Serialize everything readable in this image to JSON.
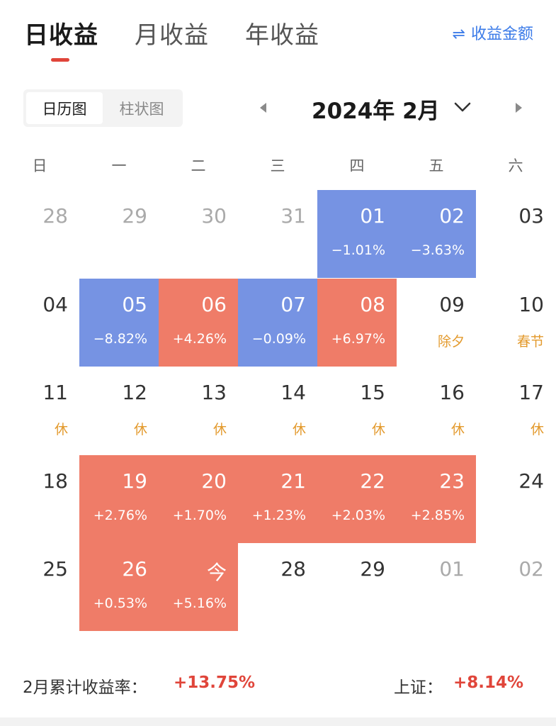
{
  "tabs": [
    {
      "label": "日收益",
      "active": true
    },
    {
      "label": "月收益",
      "active": false
    },
    {
      "label": "年收益",
      "active": false
    }
  ],
  "amount_toggle": {
    "icon": "swap-arrows-icon",
    "label": "收益金额"
  },
  "view_switch": [
    {
      "label": "日历图",
      "active": true
    },
    {
      "label": "柱状图",
      "active": false
    }
  ],
  "month_nav": {
    "title": "2024年 2月"
  },
  "weekdays": [
    "日",
    "一",
    "二",
    "三",
    "四",
    "五",
    "六"
  ],
  "days": [
    {
      "day": "28",
      "state": "muted"
    },
    {
      "day": "29",
      "state": "muted"
    },
    {
      "day": "30",
      "state": "muted"
    },
    {
      "day": "31",
      "state": "muted"
    },
    {
      "day": "01",
      "state": "neg",
      "sub": "−1.01%"
    },
    {
      "day": "02",
      "state": "neg",
      "sub": "−3.63%"
    },
    {
      "day": "03",
      "state": "normal"
    },
    {
      "day": "04",
      "state": "normal"
    },
    {
      "day": "05",
      "state": "neg",
      "sub": "−8.82%"
    },
    {
      "day": "06",
      "state": "pos",
      "sub": "+4.26%"
    },
    {
      "day": "07",
      "state": "neg",
      "sub": "−0.09%"
    },
    {
      "day": "08",
      "state": "pos",
      "sub": "+6.97%"
    },
    {
      "day": "09",
      "state": "holiday",
      "sub": "除夕"
    },
    {
      "day": "10",
      "state": "holiday",
      "sub": "春节"
    },
    {
      "day": "11",
      "state": "holiday",
      "sub": "休"
    },
    {
      "day": "12",
      "state": "holiday",
      "sub": "休"
    },
    {
      "day": "13",
      "state": "holiday",
      "sub": "休"
    },
    {
      "day": "14",
      "state": "holiday",
      "sub": "休"
    },
    {
      "day": "15",
      "state": "holiday",
      "sub": "休"
    },
    {
      "day": "16",
      "state": "holiday",
      "sub": "休"
    },
    {
      "day": "17",
      "state": "holiday",
      "sub": "休"
    },
    {
      "day": "18",
      "state": "normal"
    },
    {
      "day": "19",
      "state": "pos",
      "sub": "+2.76%"
    },
    {
      "day": "20",
      "state": "pos",
      "sub": "+1.70%"
    },
    {
      "day": "21",
      "state": "pos",
      "sub": "+1.23%"
    },
    {
      "day": "22",
      "state": "pos",
      "sub": "+2.03%"
    },
    {
      "day": "23",
      "state": "pos",
      "sub": "+2.85%"
    },
    {
      "day": "24",
      "state": "normal"
    },
    {
      "day": "25",
      "state": "normal"
    },
    {
      "day": "26",
      "state": "pos",
      "sub": "+0.53%"
    },
    {
      "day": "今",
      "state": "pos",
      "sub": "+5.16%"
    },
    {
      "day": "28",
      "state": "normal"
    },
    {
      "day": "29",
      "state": "normal"
    },
    {
      "day": "01",
      "state": "muted"
    },
    {
      "day": "02",
      "state": "muted"
    }
  ],
  "summary": {
    "label": "2月累计收益率：",
    "value": "+13.75%",
    "index_label": "上证：",
    "index_value": "+8.14%"
  },
  "colors": {
    "gain": "#ef7c68",
    "loss": "#7693e3",
    "holiday": "#e39a2d",
    "accent": "#3b7be8",
    "red_text": "#e0453a"
  }
}
